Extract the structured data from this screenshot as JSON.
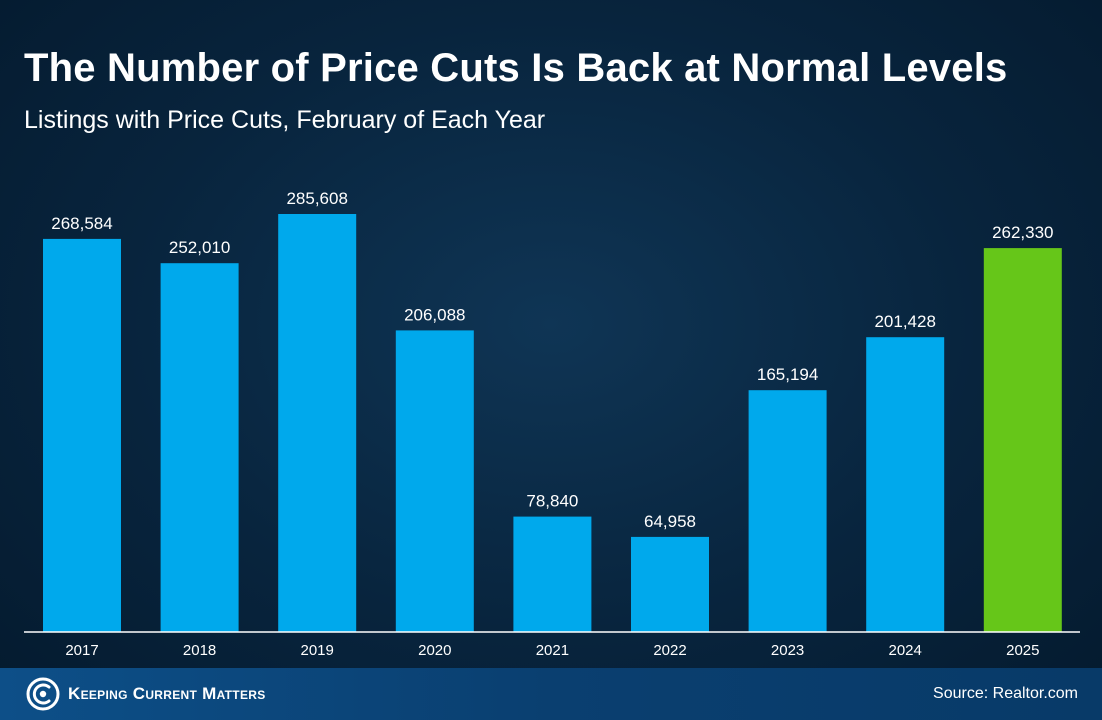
{
  "title": "The Number of Price Cuts Is Back at Normal Levels",
  "subtitle": "Listings with Price Cuts, February of Each Year",
  "footer": {
    "brand": "Keeping Current Matters",
    "source": "Source: Realtor.com"
  },
  "colors": {
    "bar": "#00a9ec",
    "highlight_bar": "#66c619",
    "axis": "#ffffff"
  },
  "chart_data": {
    "type": "bar",
    "title": "The Number of Price Cuts Is Back at Normal Levels",
    "subtitle": "Listings with Price Cuts, February of Each Year",
    "xlabel": "",
    "ylabel": "",
    "ylim": [
      0,
      300000
    ],
    "grid": false,
    "categories": [
      "2017",
      "2018",
      "2019",
      "2020",
      "2021",
      "2022",
      "2023",
      "2024",
      "2025"
    ],
    "values": [
      268584,
      252010,
      285608,
      206088,
      78840,
      64958,
      165194,
      201428,
      262330
    ],
    "labels": [
      "268,584",
      "252,010",
      "285,608",
      "206,088",
      "78,840",
      "64,958",
      "165,194",
      "201,428",
      "262,330"
    ],
    "highlight_index": 8
  }
}
